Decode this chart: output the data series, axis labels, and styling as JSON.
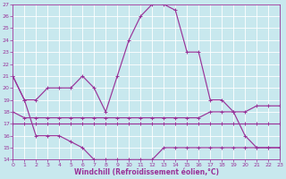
{
  "xlabel": "Windchill (Refroidissement éolien,°C)",
  "background_color": "#c8e8ee",
  "grid_color": "#ffffff",
  "line_color": "#993399",
  "xlim": [
    0,
    23
  ],
  "ylim": [
    14,
    27
  ],
  "xticks": [
    0,
    1,
    2,
    3,
    4,
    5,
    6,
    7,
    8,
    9,
    10,
    11,
    12,
    13,
    14,
    15,
    16,
    17,
    18,
    19,
    20,
    21,
    22,
    23
  ],
  "yticks": [
    14,
    15,
    16,
    17,
    18,
    19,
    20,
    21,
    22,
    23,
    24,
    25,
    26,
    27
  ],
  "curve_arc": [
    21,
    19,
    19,
    20,
    20,
    20,
    21,
    20,
    18,
    21,
    24,
    26,
    27,
    27,
    26.5,
    23,
    23,
    19,
    19,
    18,
    16,
    15,
    15,
    15
  ],
  "curve_wind": [
    21,
    19,
    16,
    16,
    16,
    15.5,
    15,
    14,
    14,
    14,
    14,
    14,
    14,
    15,
    15,
    15,
    15,
    15,
    15,
    15,
    15,
    15,
    15,
    15
  ],
  "curve_high": [
    18,
    17.5,
    17.5,
    17.5,
    17.5,
    17.5,
    17.5,
    17.5,
    17.5,
    17.5,
    17.5,
    17.5,
    17.5,
    17.5,
    17.5,
    17.5,
    17.5,
    18,
    18,
    18,
    18,
    18.5,
    18.5,
    18.5
  ],
  "curve_low": [
    17,
    17,
    17,
    17,
    17,
    17,
    17,
    17,
    17,
    17,
    17,
    17,
    17,
    17,
    17,
    17,
    17,
    17,
    17,
    17,
    17,
    17,
    17,
    17
  ]
}
